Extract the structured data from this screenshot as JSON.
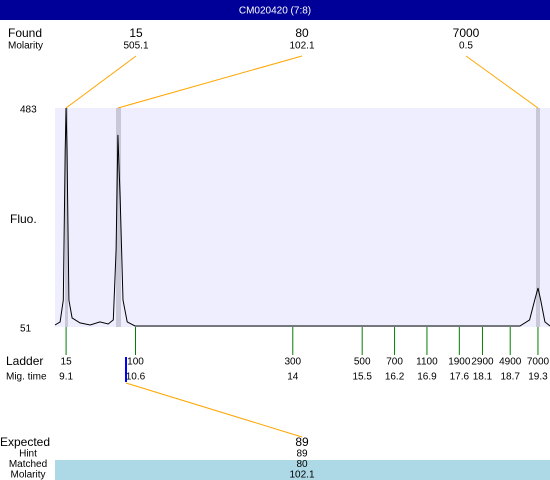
{
  "header": {
    "title": "CM020420 (7:8)"
  },
  "found": {
    "label": "Found",
    "sublabel": "Molarity",
    "peaks": [
      {
        "size": 15,
        "molarity": 505.1
      },
      {
        "size": 80,
        "molarity": 102.1
      },
      {
        "size": 7000,
        "molarity": 0.5
      }
    ]
  },
  "trace": {
    "y_label": "Fluo.",
    "xlim": [
      8.86,
      19.56
    ],
    "ylim": [
      51,
      483
    ],
    "x": [
      8.86,
      8.97,
      9.04,
      9.08,
      9.1,
      9.12,
      9.16,
      9.23,
      9.4,
      9.62,
      9.83,
      10.01,
      10.12,
      10.18,
      10.22,
      10.27,
      10.33,
      10.42,
      10.59,
      14.16,
      18.91,
      19.12,
      19.23,
      19.3,
      19.36,
      19.45,
      19.56
    ],
    "y": [
      55,
      61,
      104,
      400,
      483,
      400,
      104,
      69,
      59,
      55,
      61,
      57,
      65,
      203,
      430,
      302,
      104,
      61,
      53,
      53,
      53,
      65,
      104,
      128,
      104,
      61,
      53
    ]
  },
  "ladder": {
    "label": "Ladder",
    "sublabel": "Mig. time",
    "entries": [
      {
        "size": 15,
        "time": 9.1
      },
      {
        "size": 100,
        "time": 10.6
      },
      {
        "size": 300,
        "time": 14
      },
      {
        "size": 500,
        "time": 15.5
      },
      {
        "size": 700,
        "time": 16.2
      },
      {
        "size": 1100,
        "time": 16.9
      },
      {
        "size": 1900,
        "time": 17.6
      },
      {
        "size": 2900,
        "time": 18.1
      },
      {
        "size": 4900,
        "time": 18.7
      },
      {
        "size": 7000,
        "time": 19.3
      }
    ]
  },
  "expected": {
    "label": "Expected",
    "value": 89,
    "rows": [
      {
        "label": "Hint",
        "value": 89
      },
      {
        "label": "Matched",
        "value": 80
      },
      {
        "label": "Molarity",
        "value": 102.1
      }
    ]
  }
}
